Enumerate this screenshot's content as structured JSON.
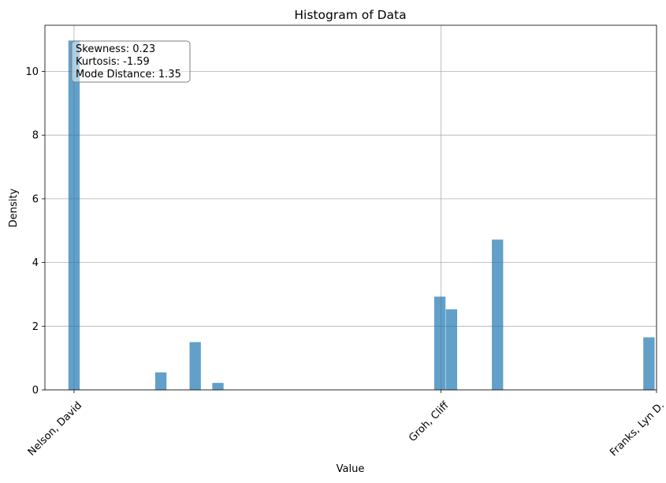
{
  "chart_data": {
    "type": "bar",
    "title": "Histogram of Data",
    "xlabel": "Value",
    "ylabel": "Density",
    "ylim": [
      0,
      11.45
    ],
    "xlim": [
      -0.05,
      1.0
    ],
    "grid": true,
    "bar_color": "#1f77b4",
    "bar_opacity": 0.7,
    "bin_width": 0.0194,
    "x_ticks": [
      {
        "value": 0.0,
        "label": "Nelson, David"
      },
      {
        "value": 0.63,
        "label": "Groh, Cliff"
      },
      {
        "value": 1.0,
        "label": "Franks, Lyn D."
      }
    ],
    "y_ticks": [
      0,
      2,
      4,
      6,
      8,
      10
    ],
    "bins": [
      {
        "x": 0.0,
        "value": 10.97
      },
      {
        "x": 0.149,
        "value": 0.55
      },
      {
        "x": 0.208,
        "value": 1.5
      },
      {
        "x": 0.247,
        "value": 0.22
      },
      {
        "x": 0.628,
        "value": 2.93
      },
      {
        "x": 0.648,
        "value": 2.53
      },
      {
        "x": 0.727,
        "value": 4.72
      },
      {
        "x": 0.987,
        "value": 1.65
      }
    ],
    "annotation": {
      "lines": [
        "Skewness: 0.23",
        "Kurtosis: -1.59",
        "Mode Distance: 1.35"
      ],
      "placement": "top-left"
    }
  }
}
